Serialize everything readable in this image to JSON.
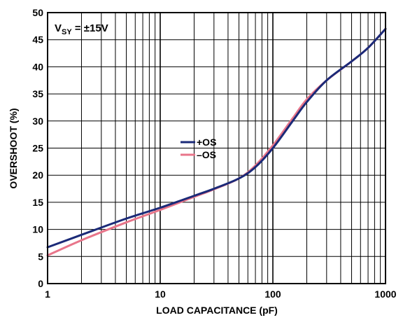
{
  "chart_data": {
    "type": "line",
    "xscale": "log",
    "xlim": [
      1,
      1000
    ],
    "ylim": [
      0,
      50
    ],
    "xlabel": "LOAD CAPACITANCE (pF)",
    "ylabel": "OVERSHOOT (%)",
    "x_ticks": [
      1,
      10,
      100,
      1000
    ],
    "x_tick_labels": [
      "1",
      "10",
      "100",
      "1000"
    ],
    "y_ticks": [
      0,
      5,
      10,
      15,
      20,
      25,
      30,
      35,
      40,
      45,
      50
    ],
    "y_tick_labels": [
      "0",
      "5",
      "10",
      "15",
      "20",
      "25",
      "30",
      "35",
      "40",
      "45",
      "50"
    ],
    "grid": true,
    "annotation": {
      "main": "V",
      "sub": "SY",
      "rest": " = ±15V"
    },
    "legend_position": "center",
    "series": [
      {
        "name": "+OS",
        "color": "#1b2a78",
        "x": [
          1,
          2,
          5,
          10,
          20,
          30,
          50,
          70,
          100,
          150,
          200,
          300,
          500,
          700,
          1000
        ],
        "y": [
          6.7,
          9.0,
          12.0,
          14.0,
          16.2,
          17.5,
          19.4,
          21.5,
          25.0,
          30.0,
          33.5,
          37.5,
          41.0,
          43.5,
          47.0
        ]
      },
      {
        "name": "–OS",
        "color": "#e8758a",
        "x": [
          1,
          2,
          5,
          10,
          20,
          30,
          50,
          70,
          100,
          150,
          200,
          300,
          500,
          700,
          1000
        ],
        "y": [
          5.2,
          8.0,
          11.3,
          13.6,
          16.0,
          17.4,
          19.4,
          21.8,
          25.5,
          30.5,
          34.0,
          37.5,
          41.0,
          43.5,
          47.0
        ]
      }
    ]
  }
}
